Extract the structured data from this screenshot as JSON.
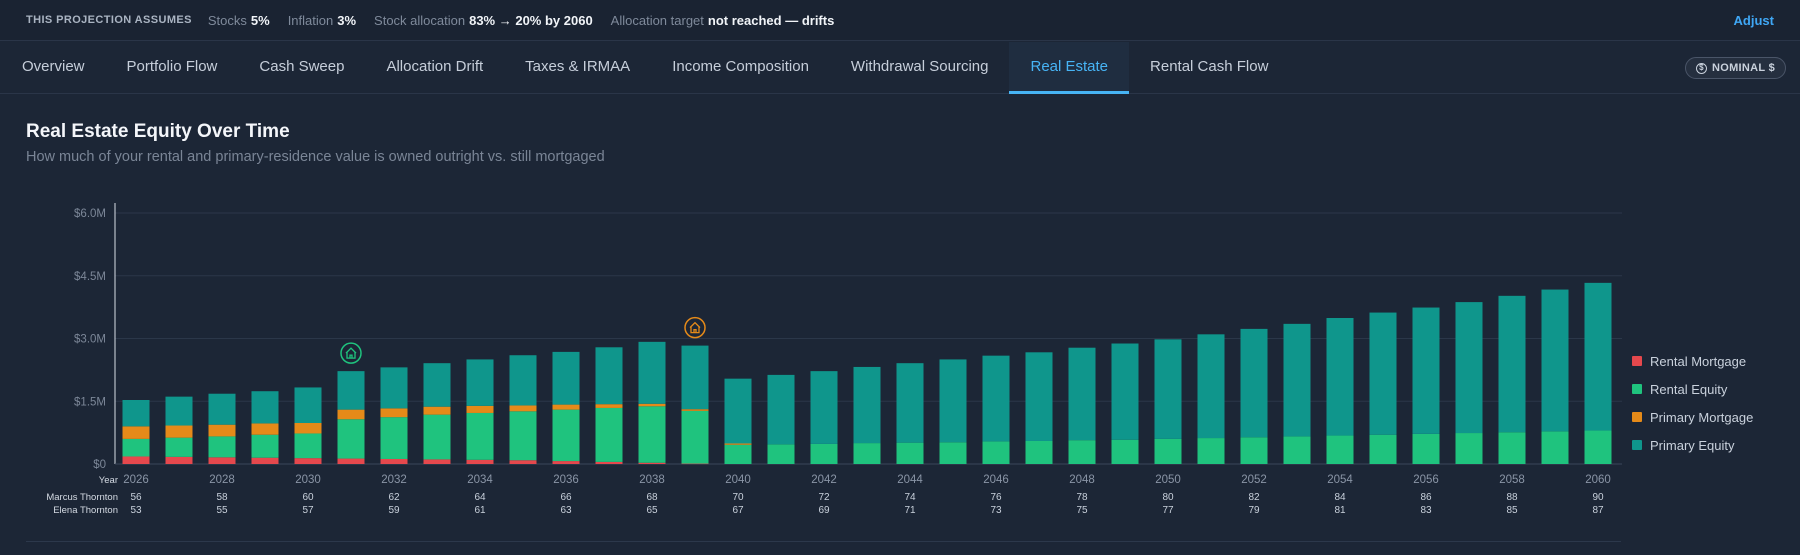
{
  "assumptions": {
    "title": "THIS PROJECTION ASSUMES",
    "items": [
      {
        "label": "Stocks",
        "value": "5%"
      },
      {
        "label": "Inflation",
        "value": "3%"
      },
      {
        "label": "Stock allocation",
        "value": "83% → 20% by 2060"
      },
      {
        "label": "Allocation target",
        "value": "not reached — drifts"
      }
    ],
    "adjust_label": "Adjust"
  },
  "tabs": [
    {
      "label": "Overview",
      "active": false
    },
    {
      "label": "Portfolio Flow",
      "active": false
    },
    {
      "label": "Cash Sweep",
      "active": false
    },
    {
      "label": "Allocation Drift",
      "active": false
    },
    {
      "label": "Taxes & IRMAA",
      "active": false
    },
    {
      "label": "Income Composition",
      "active": false
    },
    {
      "label": "Withdrawal Sourcing",
      "active": false
    },
    {
      "label": "Real Estate",
      "active": true
    },
    {
      "label": "Rental Cash Flow",
      "active": false
    }
  ],
  "nominal_toggle": {
    "label": "NOMINAL $",
    "icon": "dollar-circle-icon"
  },
  "chart_data": {
    "type": "bar",
    "stacked": true,
    "title": "Real Estate Equity Over Time",
    "subtitle": "How much of your rental and primary-residence value is owned outright vs. still mortgaged",
    "x": [
      2026,
      2027,
      2028,
      2029,
      2030,
      2031,
      2032,
      2033,
      2034,
      2035,
      2036,
      2037,
      2038,
      2039,
      2040,
      2041,
      2042,
      2043,
      2044,
      2045,
      2046,
      2047,
      2048,
      2049,
      2050,
      2051,
      2052,
      2053,
      2054,
      2055,
      2056,
      2057,
      2058,
      2059,
      2060
    ],
    "x_tick_labels": [
      "2026",
      "2028",
      "2030",
      "2032",
      "2034",
      "2036",
      "2038",
      "2040",
      "2042",
      "2044",
      "2046",
      "2048",
      "2050",
      "2052",
      "2054",
      "2056",
      "2058",
      "2060"
    ],
    "ylim": [
      0,
      6000000
    ],
    "y_ticks": [
      {
        "value": 0,
        "label": "$0"
      },
      {
        "value": 1500000,
        "label": "$1.5M"
      },
      {
        "value": 3000000,
        "label": "$3.0M"
      },
      {
        "value": 4500000,
        "label": "$4.5M"
      },
      {
        "value": 6000000,
        "label": "$6.0M"
      }
    ],
    "grid": true,
    "legend_position": "right",
    "series": [
      {
        "name": "Rental Mortgage",
        "color": "#e5484d",
        "values": [
          180000,
          170000,
          160000,
          150000,
          140000,
          130000,
          120000,
          110000,
          100000,
          90000,
          70000,
          50000,
          30000,
          10000,
          0,
          0,
          0,
          0,
          0,
          0,
          0,
          0,
          0,
          0,
          0,
          0,
          0,
          0,
          0,
          0,
          0,
          0,
          0,
          0,
          0
        ]
      },
      {
        "name": "Rental Equity",
        "color": "#1fc37e",
        "values": [
          420000,
          460000,
          500000,
          550000,
          590000,
          940000,
          1000000,
          1070000,
          1120000,
          1170000,
          1230000,
          1290000,
          1350000,
          1260000,
          460000,
          470000,
          480000,
          500000,
          510000,
          520000,
          540000,
          550000,
          570000,
          580000,
          600000,
          620000,
          640000,
          660000,
          680000,
          700000,
          720000,
          740000,
          760000,
          780000,
          800000
        ]
      },
      {
        "name": "Primary Mortgage",
        "color": "#e58a19",
        "values": [
          300000,
          290000,
          280000,
          270000,
          250000,
          230000,
          210000,
          190000,
          170000,
          140000,
          120000,
          90000,
          60000,
          40000,
          30000,
          0,
          0,
          0,
          0,
          0,
          0,
          0,
          0,
          0,
          0,
          0,
          0,
          0,
          0,
          0,
          0,
          0,
          0,
          0,
          0
        ]
      },
      {
        "name": "Primary Equity",
        "color": "#0f968c",
        "values": [
          630000,
          690000,
          740000,
          770000,
          850000,
          920000,
          980000,
          1040000,
          1110000,
          1200000,
          1260000,
          1360000,
          1480000,
          1520000,
          1550000,
          1660000,
          1740000,
          1820000,
          1900000,
          1980000,
          2050000,
          2120000,
          2210000,
          2300000,
          2380000,
          2480000,
          2590000,
          2690000,
          2810000,
          2920000,
          3020000,
          3130000,
          3260000,
          3390000,
          3530000
        ]
      }
    ],
    "event_markers": [
      {
        "year": 2031,
        "icon": "house-icon",
        "color": "#1fc37e"
      },
      {
        "year": 2039,
        "icon": "house-icon",
        "color": "#e58a19"
      }
    ],
    "age_rows": [
      {
        "label": "Year",
        "ages": []
      },
      {
        "label": "Marcus Thornton",
        "ages": [
          "56",
          "58",
          "60",
          "62",
          "64",
          "66",
          "68",
          "70",
          "72",
          "74",
          "76",
          "78",
          "80",
          "82",
          "84",
          "86",
          "88",
          "90"
        ]
      },
      {
        "label": "Elena Thornton",
        "ages": [
          "53",
          "55",
          "57",
          "59",
          "61",
          "63",
          "65",
          "67",
          "69",
          "71",
          "73",
          "75",
          "77",
          "79",
          "81",
          "83",
          "85",
          "87"
        ]
      }
    ]
  }
}
